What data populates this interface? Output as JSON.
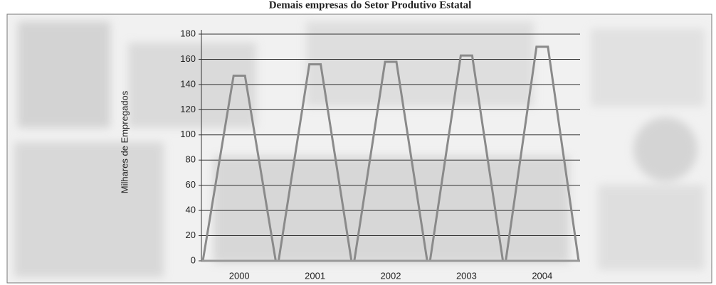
{
  "chart_data": {
    "type": "bar",
    "title": "Demais empresas do Setor Produtivo Estatal",
    "y_label": "Milhares de Empregados",
    "categories": [
      "2000",
      "2001",
      "2002",
      "2003",
      "2004"
    ],
    "values": [
      147,
      156,
      158,
      163,
      170
    ],
    "color": "#8a8a8a",
    "ylim": [
      0,
      180
    ],
    "yticks": [
      0,
      20,
      40,
      60,
      80,
      100,
      120,
      140,
      160,
      180
    ],
    "grid": true
  }
}
